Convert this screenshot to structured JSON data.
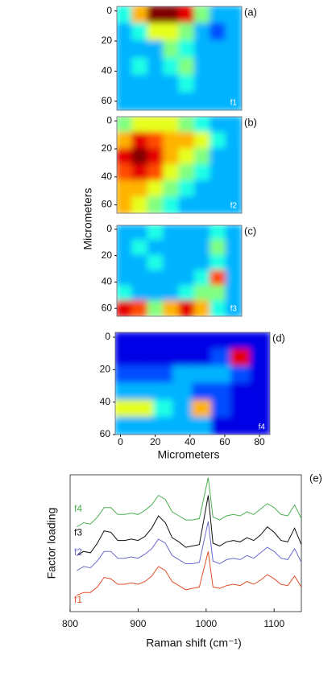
{
  "chart_data": [
    {
      "type": "heatmap",
      "panel": "(a)",
      "label": "f1",
      "colormap": "jet",
      "zlim": [
        0,
        10
      ],
      "xlim": [
        -3,
        70
      ],
      "ylim": [
        -3,
        66
      ],
      "yticks": [
        0,
        20,
        40,
        60
      ],
      "z": [
        [
          4,
          7,
          10,
          10,
          9,
          5,
          3,
          3
        ],
        [
          3,
          4,
          6,
          6,
          5,
          3,
          2,
          3
        ],
        [
          3,
          3,
          3,
          5,
          4,
          3,
          3,
          3
        ],
        [
          3,
          4,
          3,
          4,
          5,
          3,
          3,
          3
        ],
        [
          3,
          3,
          3,
          3,
          4,
          3,
          3,
          3
        ],
        [
          3,
          3,
          3,
          3,
          3,
          3,
          3,
          3
        ]
      ]
    },
    {
      "type": "heatmap",
      "panel": "(b)",
      "label": "f2",
      "ylabel": "Micrometers",
      "colormap": "jet",
      "zlim": [
        0,
        10
      ],
      "xlim": [
        -3,
        70
      ],
      "ylim": [
        -3,
        66
      ],
      "yticks": [
        0,
        20,
        40,
        60
      ],
      "z": [
        [
          5,
          6,
          6,
          6,
          5,
          4,
          3,
          3
        ],
        [
          7,
          9,
          8,
          7,
          7,
          6,
          4,
          3
        ],
        [
          9,
          10,
          9,
          7,
          6,
          5,
          3,
          3
        ],
        [
          8,
          9,
          8,
          6,
          5,
          4,
          3,
          3
        ],
        [
          7,
          7,
          6,
          5,
          4,
          3,
          3,
          3
        ],
        [
          7,
          6,
          5,
          4,
          3,
          3,
          3,
          3
        ]
      ]
    },
    {
      "type": "heatmap",
      "panel": "(c)",
      "label": "f3",
      "colormap": "jet",
      "zlim": [
        0,
        10
      ],
      "xlim": [
        -3,
        70
      ],
      "ylim": [
        -3,
        66
      ],
      "yticks": [
        0,
        20,
        40,
        60
      ],
      "z": [
        [
          3,
          3,
          4,
          3,
          3,
          3,
          4,
          3
        ],
        [
          3,
          4,
          3,
          3,
          3,
          3,
          5,
          3
        ],
        [
          3,
          3,
          4,
          3,
          3,
          3,
          4,
          3
        ],
        [
          3,
          3,
          3,
          3,
          3,
          4,
          8,
          3
        ],
        [
          4,
          3,
          3,
          3,
          4,
          5,
          5,
          3
        ],
        [
          9,
          8,
          5,
          7,
          9,
          7,
          4,
          3
        ]
      ]
    },
    {
      "type": "heatmap",
      "panel": "(d)",
      "label": "f4",
      "xlabel": "Micrometers",
      "colormap": "jet",
      "zlim": [
        0,
        10
      ],
      "xlim": [
        -3,
        86
      ],
      "ylim": [
        -3,
        60
      ],
      "xticks": [
        0,
        20,
        40,
        60,
        80
      ],
      "yticks": [
        0,
        20,
        40,
        60
      ],
      "z": [
        [
          1,
          1,
          1,
          1,
          1,
          1,
          1,
          1
        ],
        [
          1,
          1,
          1,
          1,
          1,
          2,
          9,
          1
        ],
        [
          2,
          2,
          2,
          3,
          3,
          3,
          2,
          1
        ],
        [
          3,
          3,
          3,
          3,
          2,
          2,
          1,
          1
        ],
        [
          6,
          6,
          4,
          3,
          7,
          2,
          1,
          1
        ],
        [
          3,
          3,
          3,
          3,
          3,
          1,
          1,
          1
        ]
      ]
    },
    {
      "type": "line",
      "panel": "(e)",
      "xlabel": "Raman shift (cm⁻¹)",
      "ylabel": "Factor loading",
      "xlim": [
        800,
        1140
      ],
      "ylim": [
        0,
        10
      ],
      "xticks": [
        800,
        900,
        1000,
        1100
      ],
      "x": [
        810,
        820,
        830,
        840,
        850,
        860,
        870,
        880,
        890,
        900,
        910,
        920,
        930,
        940,
        950,
        960,
        970,
        980,
        990,
        1003,
        1010,
        1020,
        1030,
        1040,
        1050,
        1060,
        1070,
        1080,
        1090,
        1100,
        1110,
        1120,
        1130,
        1140
      ],
      "series": [
        {
          "name": "f4",
          "color": "#4caf50",
          "values": [
            6.2,
            6.5,
            6.4,
            6.9,
            7.6,
            7.6,
            7.1,
            7.1,
            7.2,
            7.1,
            7.4,
            7.8,
            8.5,
            8.2,
            7.3,
            7.0,
            6.7,
            6.7,
            6.8,
            9.8,
            6.9,
            6.7,
            7.0,
            7.1,
            7.0,
            7.3,
            7.1,
            7.5,
            7.9,
            7.6,
            7.1,
            7.0,
            7.8,
            6.8
          ]
        },
        {
          "name": "f3",
          "color": "#111111",
          "values": [
            4.1,
            4.4,
            4.3,
            5.0,
            5.9,
            5.8,
            5.2,
            5.2,
            5.3,
            5.2,
            5.5,
            6.1,
            7.0,
            6.5,
            5.4,
            5.1,
            4.7,
            4.8,
            4.9,
            8.5,
            5.0,
            4.8,
            5.1,
            5.2,
            5.1,
            5.4,
            5.2,
            5.6,
            6.2,
            5.8,
            5.2,
            5.1,
            6.1,
            4.9
          ]
        },
        {
          "name": "f2",
          "color": "#6a6acd",
          "values": [
            3.0,
            3.3,
            3.2,
            3.7,
            4.4,
            4.4,
            3.9,
            3.9,
            4.0,
            3.9,
            4.2,
            4.6,
            5.3,
            5.0,
            4.1,
            3.8,
            3.5,
            3.5,
            3.6,
            6.6,
            3.7,
            3.5,
            3.8,
            3.9,
            3.8,
            4.1,
            3.9,
            4.3,
            4.7,
            4.4,
            3.9,
            3.8,
            4.6,
            3.6
          ]
        },
        {
          "name": "f1",
          "color": "#e0502a",
          "values": [
            1.2,
            1.4,
            1.4,
            1.8,
            2.5,
            2.4,
            2.0,
            2.0,
            2.1,
            2.0,
            2.2,
            2.6,
            3.3,
            3.0,
            2.2,
            1.9,
            1.6,
            1.7,
            1.8,
            4.4,
            1.8,
            1.7,
            1.9,
            2.0,
            1.9,
            2.2,
            2.0,
            2.3,
            2.7,
            2.4,
            2.0,
            1.9,
            2.6,
            1.8
          ]
        }
      ]
    }
  ]
}
